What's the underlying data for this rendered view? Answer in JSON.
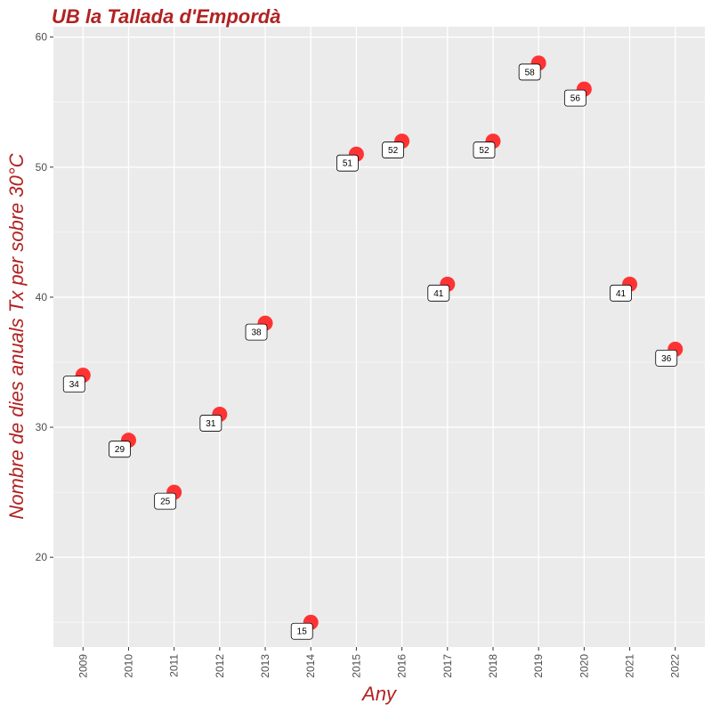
{
  "chart_data": {
    "type": "scatter",
    "title": "UB la Tallada d'Empordà",
    "xlabel": "Any",
    "ylabel": "Nombre de dies anuals Tx per sobre 30°C",
    "x": [
      2009,
      2010,
      2011,
      2012,
      2013,
      2014,
      2015,
      2016,
      2017,
      2018,
      2019,
      2020,
      2021,
      2022
    ],
    "y": [
      34,
      29,
      25,
      31,
      38,
      15,
      51,
      52,
      41,
      52,
      58,
      56,
      41,
      36
    ],
    "labels": [
      "34",
      "29",
      "25",
      "31",
      "38",
      "15",
      "51",
      "52",
      "41",
      "52",
      "58",
      "56",
      "41",
      "36"
    ],
    "x_ticks": [
      "2009",
      "2010",
      "2011",
      "2012",
      "2013",
      "2014",
      "2015",
      "2016",
      "2017",
      "2018",
      "2019",
      "2020",
      "2021",
      "2022"
    ],
    "y_ticks": [
      "20",
      "30",
      "40",
      "50",
      "60"
    ],
    "ylim": [
      13.1,
      60.8
    ],
    "xlim": [
      2008.35,
      2022.65
    ],
    "grid": true,
    "legend": "none",
    "colors": {
      "point": "#ff3333",
      "title": "#b22222",
      "panel_background": "#ebebeb",
      "grid": "#ffffff"
    }
  }
}
